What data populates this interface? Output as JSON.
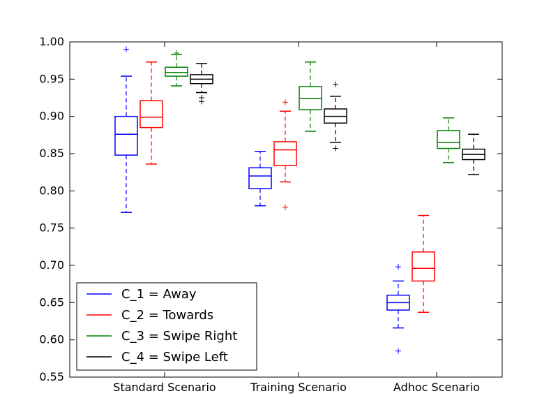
{
  "chart_data": {
    "type": "box",
    "title": "",
    "xlabel": "",
    "ylabel": "",
    "ylim": [
      0.55,
      1.0
    ],
    "yticks": [
      0.55,
      0.6,
      0.65,
      0.7,
      0.75,
      0.8,
      0.85,
      0.9,
      0.95,
      1.0
    ],
    "ytick_labels": [
      "0.55",
      "0.60",
      "0.65",
      "0.70",
      "0.75",
      "0.80",
      "0.85",
      "0.90",
      "0.95",
      "1.00"
    ],
    "categories": [
      "Standard Scenario",
      "Training Scenario",
      "Adhoc Scenario"
    ],
    "legend_position": "lower-left",
    "grid": false,
    "series": [
      {
        "name": "C_1 = Away",
        "color": "#0000ff",
        "boxes": [
          {
            "whislo": 0.771,
            "q1": 0.848,
            "med": 0.876,
            "q3": 0.9,
            "whishi": 0.954,
            "fliers": [
              0.99
            ]
          },
          {
            "whislo": 0.78,
            "q1": 0.803,
            "med": 0.82,
            "q3": 0.831,
            "whishi": 0.853,
            "fliers": []
          },
          {
            "whislo": 0.616,
            "q1": 0.64,
            "med": 0.65,
            "q3": 0.66,
            "whishi": 0.679,
            "fliers": [
              0.698,
              0.585
            ]
          }
        ]
      },
      {
        "name": "C_2 = Towards",
        "color": "#ff0000",
        "boxes": [
          {
            "whislo": 0.836,
            "q1": 0.885,
            "med": 0.899,
            "q3": 0.921,
            "whishi": 0.973,
            "fliers": []
          },
          {
            "whislo": 0.812,
            "q1": 0.834,
            "med": 0.855,
            "q3": 0.866,
            "whishi": 0.907,
            "fliers": [
              0.919,
              0.778
            ]
          },
          {
            "whislo": 0.637,
            "q1": 0.679,
            "med": 0.696,
            "q3": 0.718,
            "whishi": 0.767,
            "fliers": []
          }
        ]
      },
      {
        "name": "C_3 = Swipe Right",
        "color": "#008000",
        "boxes": [
          {
            "whislo": 0.941,
            "q1": 0.954,
            "med": 0.959,
            "q3": 0.966,
            "whishi": 0.983,
            "fliers": [
              0.985
            ]
          },
          {
            "whislo": 0.88,
            "q1": 0.909,
            "med": 0.924,
            "q3": 0.94,
            "whishi": 0.973,
            "fliers": []
          },
          {
            "whislo": 0.838,
            "q1": 0.857,
            "med": 0.865,
            "q3": 0.881,
            "whishi": 0.898,
            "fliers": []
          }
        ]
      },
      {
        "name": "C_4 = Swipe Left",
        "color": "#000000",
        "boxes": [
          {
            "whislo": 0.932,
            "q1": 0.944,
            "med": 0.95,
            "q3": 0.956,
            "whishi": 0.971,
            "fliers": [
              0.925,
              0.92
            ]
          },
          {
            "whislo": 0.865,
            "q1": 0.891,
            "med": 0.9,
            "q3": 0.91,
            "whishi": 0.927,
            "fliers": [
              0.943,
              0.857
            ]
          },
          {
            "whislo": 0.822,
            "q1": 0.842,
            "med": 0.849,
            "q3": 0.856,
            "whishi": 0.876,
            "fliers": []
          }
        ]
      }
    ]
  }
}
